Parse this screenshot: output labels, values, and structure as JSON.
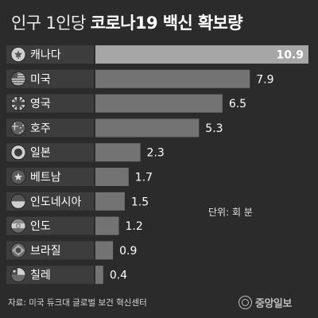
{
  "title": {
    "part1": "인구 1인당",
    "part2": "코로나19 백신 확보량"
  },
  "unit_label": "단위: 회 분",
  "source": "자료: 미국 듀크대 글로벌 보건 혁신센터",
  "logo": "중앙일보",
  "chart_data": {
    "type": "bar",
    "orientation": "horizontal",
    "categories": [
      "캐나다",
      "미국",
      "영국",
      "호주",
      "일본",
      "베트남",
      "인도네시아",
      "인도",
      "브라질",
      "칠레"
    ],
    "values": [
      10.9,
      7.9,
      6.5,
      5.3,
      2.3,
      1.7,
      1.5,
      1.2,
      0.9,
      0.4
    ],
    "value_labels": [
      "10.9",
      "7.9",
      "6.5",
      "5.3",
      "2.3",
      "1.7",
      "1.5",
      "1.2",
      "0.9",
      "0.4"
    ],
    "flag_icons": [
      "canada-flag-icon",
      "usa-flag-icon",
      "uk-flag-icon",
      "australia-flag-icon",
      "japan-flag-icon",
      "vietnam-flag-icon",
      "indonesia-flag-icon",
      "india-flag-icon",
      "brazil-flag-icon",
      "chile-flag-icon"
    ],
    "xlim": [
      0,
      10.9
    ],
    "highlight_index": 0,
    "colors": {
      "background": "#2b2b2b",
      "bar": "#737373",
      "bar_highlight": "#a6a6a6",
      "label_box": "#3d3d3d",
      "text": "#ffffff",
      "flag": "#d0d0d0"
    }
  }
}
